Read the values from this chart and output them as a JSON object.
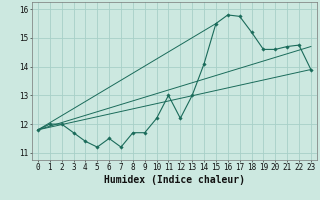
{
  "xlabel": "Humidex (Indice chaleur)",
  "background_color": "#cce8e0",
  "grid_color": "#a8d0c8",
  "line_color": "#1a6b5a",
  "xlim": [
    -0.5,
    23.5
  ],
  "ylim": [
    10.75,
    16.25
  ],
  "x_ticks": [
    0,
    1,
    2,
    3,
    4,
    5,
    6,
    7,
    8,
    9,
    10,
    11,
    12,
    13,
    14,
    15,
    16,
    17,
    18,
    19,
    20,
    21,
    22,
    23
  ],
  "y_ticks": [
    11,
    12,
    13,
    14,
    15,
    16
  ],
  "series1_x": [
    0,
    1,
    2,
    3,
    4,
    5,
    6,
    7,
    8,
    9,
    10,
    11,
    12,
    13,
    14,
    15,
    16,
    17,
    18,
    19,
    20,
    21,
    22,
    23
  ],
  "series1_y": [
    11.8,
    12.0,
    12.0,
    11.7,
    11.4,
    11.2,
    11.5,
    11.2,
    11.7,
    11.7,
    12.2,
    13.0,
    12.2,
    13.0,
    14.1,
    15.5,
    15.8,
    15.75,
    15.2,
    14.6,
    14.6,
    14.7,
    14.75,
    13.9
  ],
  "series2_x": [
    0,
    23
  ],
  "series2_y": [
    11.8,
    13.9
  ],
  "series3_x": [
    0,
    15
  ],
  "series3_y": [
    11.8,
    15.5
  ],
  "series4_x": [
    0,
    23
  ],
  "series4_y": [
    11.8,
    14.7
  ],
  "tick_fontsize": 5.5,
  "label_fontsize": 7
}
